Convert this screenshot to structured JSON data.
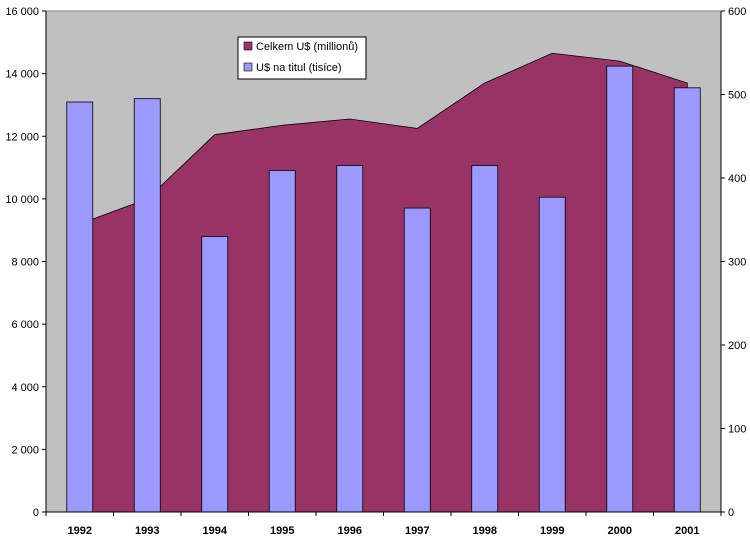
{
  "chart_data": {
    "type": "bar",
    "categories": [
      "1992",
      "1993",
      "1994",
      "1995",
      "1996",
      "1997",
      "1998",
      "1999",
      "2000",
      "2001"
    ],
    "series": [
      {
        "name": "Celkem U$ (millionů)",
        "chart_type": "area",
        "axis": "left",
        "color": "#993366",
        "values": [
          9200,
          10000,
          12050,
          12350,
          12550,
          12250,
          13700,
          14650,
          14400,
          13700
        ]
      },
      {
        "name": "U$ na titul (tisíce)",
        "chart_type": "bar",
        "axis": "right",
        "color": "#9999FF",
        "values": [
          491,
          495,
          330,
          409,
          415,
          364,
          415,
          377,
          534,
          508
        ]
      }
    ],
    "y_left": {
      "range": [
        0,
        16000
      ],
      "ticks": [
        "0",
        "2 000",
        "4 000",
        "6 000",
        "8 000",
        "10 000",
        "12 000",
        "14 000",
        "16 000"
      ]
    },
    "y_right": {
      "range": [
        0,
        600
      ],
      "ticks": [
        "0",
        "100",
        "200",
        "300",
        "400",
        "500",
        "600"
      ]
    },
    "plot_background": "#C0C0C0",
    "grid": false,
    "legend_position": "top-center"
  }
}
